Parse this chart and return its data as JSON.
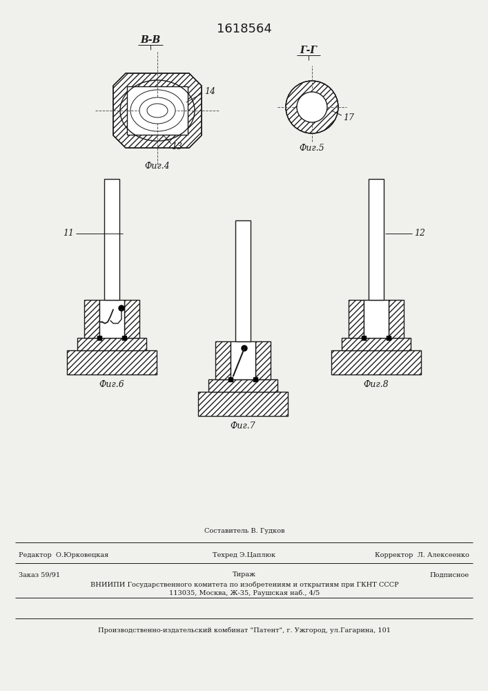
{
  "patent_number": "1618564",
  "background_color": "#f0f0ec",
  "line_color": "#1a1a1a",
  "title_fontsize": 13,
  "label_fontsize": 9,
  "small_fontsize": 7.0,
  "footer_texts": {
    "line1_left": "Редактор  О.Юрковецкая",
    "line1_center_top": "Составитель В. Гудков",
    "line1_center_bot": "Техред Э.Цаплюк",
    "line1_right": "Корректор  Л. Алексеенко",
    "line2_left": "Заказ 59/91",
    "line2_center": "Тираж",
    "line2_right": "Подписное",
    "line3": "ВНИИПИ Государственного комитета по изобретениям и открытиям при ГКНТ СССР",
    "line4": "113035, Москва, Ж-35, Раушская наб., 4/5",
    "line5": "Производственно-издательский комбинат \"Патент\", г. Ужгород, ул.Гагарина, 101"
  },
  "fig4_label": "Фиг.4",
  "fig5_label": "Фиг.5",
  "fig6_label": "Фиг.6",
  "fig7_label": "Фиг.7",
  "fig8_label": "Фиг.8",
  "section_BB": "В-В",
  "section_GG": "Г-Г",
  "label_13": "13",
  "label_14": "14",
  "label_17": "17",
  "label_11": "11",
  "label_12": "12"
}
